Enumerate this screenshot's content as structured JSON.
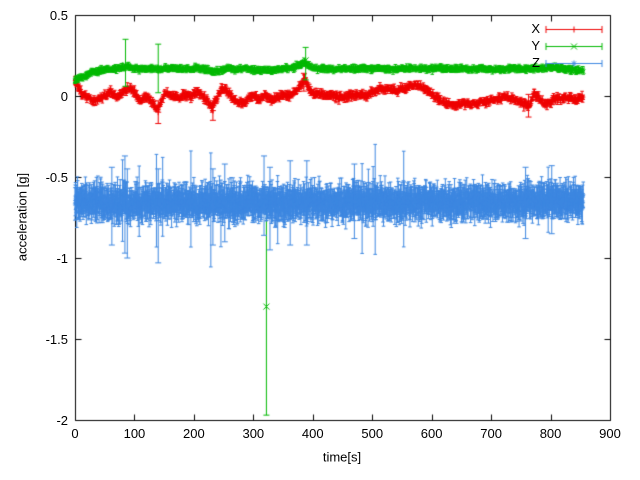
{
  "figure": {
    "background": "#ffffff"
  },
  "chart_data": {
    "type": "scatter",
    "style": "points-with-errorbars",
    "title": "",
    "xlabel": "time[s]",
    "ylabel": "acceleration [g]",
    "xlim": [
      0,
      900
    ],
    "ylim": [
      -2,
      0.5
    ],
    "xticks": [
      0,
      100,
      200,
      300,
      400,
      500,
      600,
      700,
      800,
      900
    ],
    "yticks": [
      -2,
      -1.5,
      -1,
      -0.5,
      0,
      0.5
    ],
    "grid": false,
    "legend_position": "top-right",
    "t_end": 855,
    "series": [
      {
        "name": "X",
        "color": "#ee0000",
        "marker": "plus",
        "step": 1,
        "noise": 0.012,
        "errorbar": 0.022,
        "spike_p": 0.004,
        "means": [
          [
            0,
            0.1
          ],
          [
            6,
            0.05
          ],
          [
            12,
            0.01
          ],
          [
            20,
            -0.01
          ],
          [
            30,
            -0.03
          ],
          [
            40,
            -0.02
          ],
          [
            50,
            0.0
          ],
          [
            60,
            0.02
          ],
          [
            70,
            -0.01
          ],
          [
            80,
            0.02
          ],
          [
            90,
            0.05
          ],
          [
            100,
            0.03
          ],
          [
            108,
            -0.03
          ],
          [
            115,
            -0.01
          ],
          [
            122,
            0.0
          ],
          [
            130,
            -0.04
          ],
          [
            137,
            -0.08
          ],
          [
            143,
            -0.05
          ],
          [
            150,
            0.01
          ],
          [
            158,
            0.02
          ],
          [
            165,
            0.0
          ],
          [
            175,
            -0.01
          ],
          [
            185,
            0.01
          ],
          [
            195,
            0.0
          ],
          [
            205,
            0.02
          ],
          [
            215,
            0.0
          ],
          [
            222,
            -0.03
          ],
          [
            230,
            -0.07
          ],
          [
            238,
            -0.02
          ],
          [
            246,
            0.04
          ],
          [
            252,
            0.05
          ],
          [
            260,
            0.01
          ],
          [
            268,
            -0.02
          ],
          [
            276,
            -0.04
          ],
          [
            284,
            -0.05
          ],
          [
            292,
            -0.01
          ],
          [
            300,
            0.0
          ],
          [
            310,
            -0.02
          ],
          [
            320,
            0.0
          ],
          [
            330,
            -0.02
          ],
          [
            340,
            -0.01
          ],
          [
            350,
            0.01
          ],
          [
            360,
            0.0
          ],
          [
            370,
            0.02
          ],
          [
            380,
            0.07
          ],
          [
            386,
            0.1
          ],
          [
            392,
            0.05
          ],
          [
            400,
            0.01
          ],
          [
            410,
            0.02
          ],
          [
            420,
            0.0
          ],
          [
            430,
            0.01
          ],
          [
            445,
            -0.01
          ],
          [
            460,
            0.0
          ],
          [
            475,
            0.01
          ],
          [
            490,
            0.0
          ],
          [
            505,
            0.03
          ],
          [
            515,
            0.05
          ],
          [
            525,
            0.04
          ],
          [
            540,
            0.03
          ],
          [
            555,
            0.05
          ],
          [
            570,
            0.07
          ],
          [
            580,
            0.06
          ],
          [
            590,
            0.04
          ],
          [
            600,
            0.01
          ],
          [
            612,
            -0.02
          ],
          [
            625,
            -0.05
          ],
          [
            640,
            -0.06
          ],
          [
            652,
            -0.04
          ],
          [
            665,
            -0.05
          ],
          [
            680,
            -0.04
          ],
          [
            695,
            -0.03
          ],
          [
            710,
            -0.02
          ],
          [
            725,
            -0.01
          ],
          [
            740,
            -0.02
          ],
          [
            755,
            -0.05
          ],
          [
            765,
            -0.06
          ],
          [
            772,
            0.01
          ],
          [
            780,
            -0.01
          ],
          [
            790,
            -0.05
          ],
          [
            800,
            -0.04
          ],
          [
            810,
            -0.01
          ],
          [
            822,
            -0.02
          ],
          [
            835,
            -0.01
          ],
          [
            845,
            -0.02
          ],
          [
            855,
            -0.01
          ]
        ],
        "outliers": [
          {
            "t": 140,
            "y": -0.1,
            "lo": -0.17,
            "hi": -0.03
          },
          {
            "t": 232,
            "y": -0.09,
            "lo": -0.15,
            "hi": -0.03
          },
          {
            "t": 385,
            "y": 0.09,
            "lo": 0.03,
            "hi": 0.14
          },
          {
            "t": 763,
            "y": -0.06,
            "lo": -0.13,
            "hi": 0.01
          }
        ]
      },
      {
        "name": "Y",
        "color": "#00b800",
        "marker": "cross",
        "step": 1,
        "noise": 0.008,
        "errorbar": 0.018,
        "spike_p": 0.003,
        "means": [
          [
            0,
            0.1
          ],
          [
            8,
            0.11
          ],
          [
            16,
            0.12
          ],
          [
            25,
            0.14
          ],
          [
            35,
            0.15
          ],
          [
            50,
            0.16
          ],
          [
            65,
            0.165
          ],
          [
            80,
            0.175
          ],
          [
            90,
            0.18
          ],
          [
            100,
            0.17
          ],
          [
            112,
            0.165
          ],
          [
            125,
            0.17
          ],
          [
            138,
            0.165
          ],
          [
            150,
            0.17
          ],
          [
            165,
            0.17
          ],
          [
            180,
            0.165
          ],
          [
            195,
            0.17
          ],
          [
            210,
            0.17
          ],
          [
            225,
            0.155
          ],
          [
            235,
            0.15
          ],
          [
            245,
            0.16
          ],
          [
            258,
            0.17
          ],
          [
            270,
            0.165
          ],
          [
            282,
            0.17
          ],
          [
            295,
            0.165
          ],
          [
            308,
            0.16
          ],
          [
            320,
            0.16
          ],
          [
            335,
            0.16
          ],
          [
            350,
            0.17
          ],
          [
            365,
            0.175
          ],
          [
            378,
            0.19
          ],
          [
            386,
            0.21
          ],
          [
            392,
            0.19
          ],
          [
            400,
            0.175
          ],
          [
            412,
            0.17
          ],
          [
            425,
            0.165
          ],
          [
            440,
            0.165
          ],
          [
            458,
            0.17
          ],
          [
            475,
            0.165
          ],
          [
            492,
            0.17
          ],
          [
            510,
            0.17
          ],
          [
            528,
            0.165
          ],
          [
            545,
            0.17
          ],
          [
            562,
            0.17
          ],
          [
            580,
            0.17
          ],
          [
            598,
            0.165
          ],
          [
            615,
            0.17
          ],
          [
            632,
            0.165
          ],
          [
            650,
            0.17
          ],
          [
            668,
            0.165
          ],
          [
            685,
            0.17
          ],
          [
            702,
            0.165
          ],
          [
            720,
            0.165
          ],
          [
            738,
            0.17
          ],
          [
            755,
            0.165
          ],
          [
            770,
            0.17
          ],
          [
            785,
            0.17
          ],
          [
            800,
            0.18
          ],
          [
            812,
            0.175
          ],
          [
            825,
            0.165
          ],
          [
            840,
            0.16
          ],
          [
            855,
            0.155
          ]
        ],
        "outliers": [
          {
            "t": 85,
            "y": 0.19,
            "lo": 0.06,
            "hi": 0.35
          },
          {
            "t": 140,
            "y": 0.17,
            "lo": 0.02,
            "hi": 0.32
          },
          {
            "t": 322,
            "y": -1.3,
            "lo": -1.97,
            "hi": -0.62
          },
          {
            "t": 388,
            "y": 0.22,
            "lo": 0.1,
            "hi": 0.3
          }
        ]
      },
      {
        "name": "Z",
        "color": "#3d87e0",
        "marker": "star",
        "step": 0.5,
        "noise": 0.045,
        "errorbar": 0.085,
        "spike_p": 0.012,
        "means": [
          [
            0,
            -0.66
          ],
          [
            30,
            -0.655
          ],
          [
            60,
            -0.66
          ],
          [
            90,
            -0.665
          ],
          [
            120,
            -0.655
          ],
          [
            150,
            -0.66
          ],
          [
            180,
            -0.655
          ],
          [
            210,
            -0.66
          ],
          [
            240,
            -0.655
          ],
          [
            270,
            -0.66
          ],
          [
            300,
            -0.655
          ],
          [
            330,
            -0.66
          ],
          [
            360,
            -0.66
          ],
          [
            390,
            -0.655
          ],
          [
            420,
            -0.655
          ],
          [
            450,
            -0.66
          ],
          [
            480,
            -0.655
          ],
          [
            510,
            -0.655
          ],
          [
            540,
            -0.66
          ],
          [
            570,
            -0.655
          ],
          [
            600,
            -0.655
          ],
          [
            630,
            -0.655
          ],
          [
            660,
            -0.65
          ],
          [
            690,
            -0.655
          ],
          [
            720,
            -0.65
          ],
          [
            750,
            -0.655
          ],
          [
            780,
            -0.65
          ],
          [
            810,
            -0.65
          ],
          [
            840,
            -0.65
          ],
          [
            855,
            -0.65
          ]
        ],
        "outliers": [
          {
            "t": 62,
            "y": -0.66,
            "lo": -0.92,
            "hi": -0.44
          },
          {
            "t": 84,
            "y": -0.6,
            "lo": -0.97,
            "hi": -0.37
          },
          {
            "t": 88,
            "y": -0.72,
            "lo": -1.0,
            "hi": -0.45
          },
          {
            "t": 140,
            "y": -0.7,
            "lo": -1.03,
            "hi": -0.45
          },
          {
            "t": 232,
            "y": -0.68,
            "lo": -0.92,
            "hi": -0.45
          },
          {
            "t": 252,
            "y": -0.66,
            "lo": -0.9,
            "hi": -0.42
          },
          {
            "t": 318,
            "y": -0.62,
            "lo": -0.86,
            "hi": -0.37
          },
          {
            "t": 328,
            "y": -0.7,
            "lo": -0.95,
            "hi": -0.44
          },
          {
            "t": 362,
            "y": -0.66,
            "lo": -0.92,
            "hi": -0.4
          },
          {
            "t": 390,
            "y": -0.65,
            "lo": -0.92,
            "hi": -0.4
          },
          {
            "t": 470,
            "y": -0.65,
            "lo": -0.88,
            "hi": -0.42
          },
          {
            "t": 758,
            "y": -0.66,
            "lo": -0.88,
            "hi": -0.44
          },
          {
            "t": 802,
            "y": -0.64,
            "lo": -0.85,
            "hi": -0.43
          }
        ]
      }
    ]
  }
}
